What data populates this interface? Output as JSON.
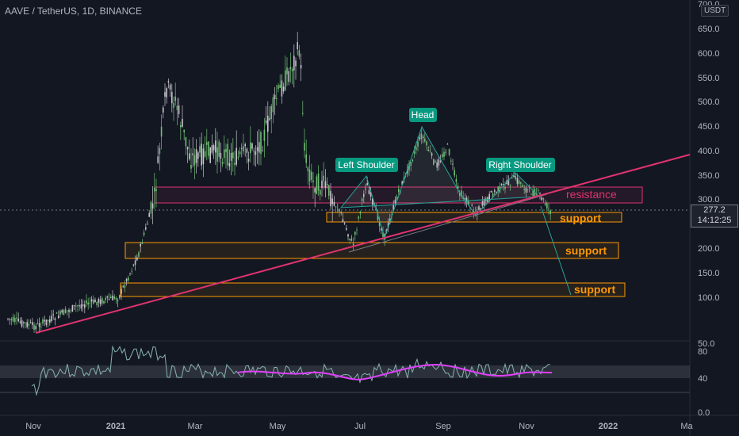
{
  "header": {
    "symbol": "AAVE / TetherUS, 1D, BINANCE",
    "currency": "USDT"
  },
  "price_axis": [
    "700.0",
    "650.0",
    "600.0",
    "550.0",
    "500.0",
    "450.0",
    "400.0",
    "350.0",
    "300.0",
    "200.0",
    "150.0",
    "100.0",
    "50.0"
  ],
  "time_axis": [
    "Nov",
    "2021",
    "Mar",
    "May",
    "Jul",
    "Sep",
    "Nov",
    "2022",
    "Ma"
  ],
  "rsi_axis": [
    "80",
    "40",
    "0.0"
  ],
  "last_price": {
    "value": "277.2",
    "countdown": "14:12:25"
  },
  "annotations": {
    "left_shoulder": "Left Shoulder",
    "head": "Head",
    "right_shoulder": "Right Shoulder",
    "resistance": "resistance",
    "support_1": "support",
    "support_2": "support",
    "support_3": "support"
  },
  "colors": {
    "background": "#131722",
    "trendline": "#e0336f",
    "support_zone": "#ff9800",
    "resistance_zone": "#e0336f",
    "pattern_label": "#089981",
    "rsi_line": "#87b3b0",
    "rsi_ma": "#e040fb"
  }
}
